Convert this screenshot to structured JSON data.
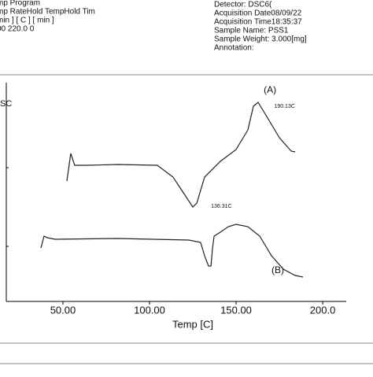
{
  "header": {
    "left": [
      "mp Program",
      "mp RateHold TempHold Tim",
      "min ]    [ C ]    [ min ]",
      "00        220.0      0"
    ],
    "right": [
      "Detector:         DSC6(",
      "Acquisition Date08/09/22",
      "Acquisition Time18:35:37",
      "Sample Name:   PSS1",
      "Sample Weight:  3.000[mg]",
      "Annotation:"
    ]
  },
  "chart_data": {
    "type": "line",
    "y_label": "DSC",
    "x_label": "Temp [C]",
    "xlim": [
      17.3,
      213.6
    ],
    "ylim": [
      0,
      290
    ],
    "xticks": [
      {
        "value": 50,
        "label": "50.00"
      },
      {
        "value": 100,
        "label": "100.00"
      },
      {
        "value": 150,
        "label": "150.00"
      },
      {
        "value": 200,
        "label": "200.0"
      }
    ],
    "yticks": [
      70,
      170
    ],
    "series": [
      {
        "name": "(A)",
        "color": "#222222",
        "x": [
          52.3,
          54.5,
          56.8,
          63.6,
          81.8,
          104.5,
          113.6,
          120.5,
          125,
          127.3,
          131.8,
          140.9,
          150,
          156.8,
          160,
          162.7,
          168.2,
          175,
          181.8,
          184.1
        ],
        "values": [
          153,
          188,
          173,
          173,
          174,
          173,
          158,
          135,
          120,
          125,
          158,
          178,
          193,
          218,
          248,
          253,
          233,
          208,
          191,
          190
        ]
      },
      {
        "name": "(B)",
        "color": "#222222",
        "x": [
          37.3,
          39.1,
          40.9,
          45.5,
          81.8,
          122.7,
          129.5,
          131.8,
          134.1,
          135.5,
          136.4,
          137.3,
          140.9,
          145.5,
          150,
          156.8,
          163.6,
          170.5,
          177.3,
          184.1,
          188.6
        ],
        "values": [
          68,
          83,
          81,
          79,
          80,
          78,
          75,
          58,
          45,
          45,
          68,
          83,
          88,
          95,
          98,
          95,
          83,
          58,
          41,
          33,
          31
        ]
      }
    ],
    "annotations": [
      {
        "text": "190.13C",
        "x": 172,
        "y": 248
      },
      {
        "text": "136.31C",
        "x": 135.5,
        "y": 121
      }
    ]
  }
}
